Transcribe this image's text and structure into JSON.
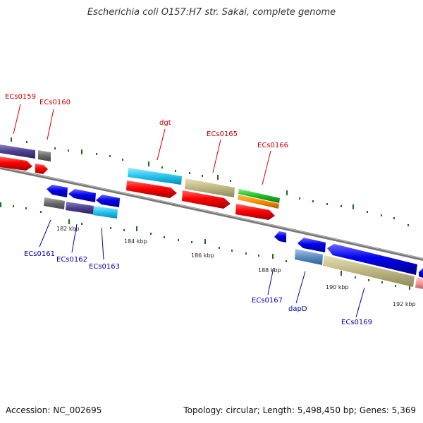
{
  "title": "Escherichia coli O157:H7 str. Sakai, complete genome",
  "footer": {
    "accession": "Accession: NC_002695",
    "stats": "Topology: circular; Length: 5,498,450 bp; Genes: 5,369"
  },
  "colors": {
    "forward_label": "#cc0000",
    "reverse_label": "#0000aa",
    "backbone": "#888888",
    "tick": "#1a6e1a"
  },
  "kbp_labels": [
    "182 kbp",
    "184 kbp",
    "186 kbp",
    "188 kbp",
    "190 kbp",
    "192 kbp"
  ],
  "forward_genes": [
    "ECs0159",
    "ECs0160",
    "dgt",
    "ECs0165",
    "ECs0166"
  ],
  "reverse_genes": [
    "ECs0161",
    "ECs0162",
    "ECs0163",
    "ECs0167",
    "dapD",
    "ECs0169"
  ]
}
